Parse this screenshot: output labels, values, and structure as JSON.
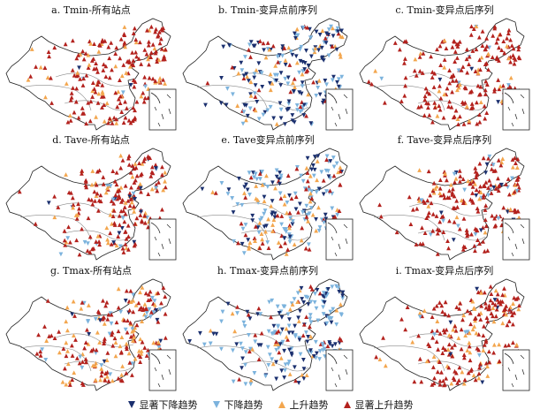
{
  "panels": [
    {
      "title": "a. Tmin-所有站点",
      "mix": [
        0.02,
        0.02,
        0.16,
        0.8
      ]
    },
    {
      "title": "b. Tmin-变异点前序列",
      "mix": [
        0.38,
        0.28,
        0.18,
        0.16
      ]
    },
    {
      "title": "c. Tmin-变异点后序列",
      "mix": [
        0.02,
        0.02,
        0.12,
        0.84
      ]
    },
    {
      "title": "d. Tave-所有站点",
      "mix": [
        0.06,
        0.06,
        0.18,
        0.7
      ]
    },
    {
      "title": "e. Tave变异点前序列",
      "mix": [
        0.22,
        0.34,
        0.22,
        0.22
      ]
    },
    {
      "title": "f. Tave-变异点后序列",
      "mix": [
        0.04,
        0.05,
        0.16,
        0.75
      ]
    },
    {
      "title": "g. Tmax-所有站点",
      "mix": [
        0.04,
        0.16,
        0.26,
        0.54
      ]
    },
    {
      "title": "h. Tmax-变异点前序列",
      "mix": [
        0.34,
        0.4,
        0.16,
        0.1
      ]
    },
    {
      "title": "i. Tmax-变异点后序列",
      "mix": [
        0.03,
        0.05,
        0.18,
        0.74
      ]
    }
  ],
  "legend": [
    {
      "label": "显著下降趋势",
      "color": "#1a2f6e",
      "shape": "triangle-down"
    },
    {
      "label": "下降趋势",
      "color": "#7cb3dd",
      "shape": "triangle-down"
    },
    {
      "label": "上升趋势",
      "color": "#f3a64e",
      "shape": "triangle-up"
    },
    {
      "label": "显著上升趋势",
      "color": "#b3211d",
      "shape": "triangle-up"
    }
  ]
}
